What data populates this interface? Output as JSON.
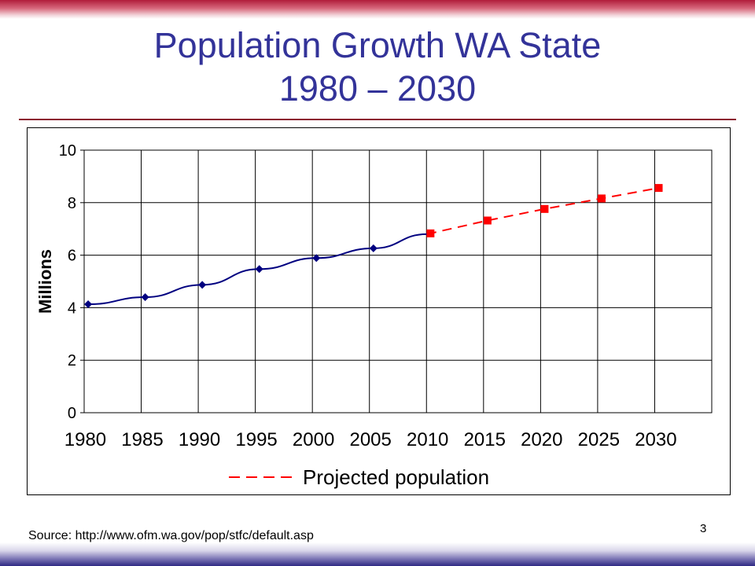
{
  "slide": {
    "title_line1": "Population Growth WA State",
    "title_line2": "1980 – 2030",
    "source": "Source: http://www.ofm.wa.gov/pop/stfc/default.asp",
    "page_number": "3"
  },
  "colors": {
    "title": "#333399",
    "actual_series": "#000080",
    "projected_series": "#ff0000"
  },
  "chart_data": {
    "type": "line",
    "ylabel": "Millions",
    "xlabel": "",
    "ylim": [
      0,
      10
    ],
    "yticks": [
      "0",
      "2",
      "4",
      "6",
      "8",
      "10"
    ],
    "x_tick_labels": [
      "1980",
      "1985",
      "1990",
      "1995",
      "2000",
      "2005",
      "2010",
      "2015",
      "2020",
      "2025",
      "2030"
    ],
    "xlim": [
      1980,
      2030
    ],
    "grid": true,
    "legend": {
      "placement": "bottom",
      "entries": [
        "Projected population"
      ]
    },
    "series": [
      {
        "marker": "diamond",
        "line_style": "solid",
        "x": [
          1980,
          1985,
          1990,
          1995,
          2000,
          2005
        ],
        "y": [
          4.13,
          4.4,
          4.87,
          5.47,
          5.89,
          6.26
        ],
        "line_end": {
          "x": 2009.7,
          "y": 6.8
        }
      },
      {
        "name": "Projected population",
        "marker": "square",
        "line_style": "dashed",
        "x": [
          2010,
          2015,
          2020,
          2025,
          2030
        ],
        "y": [
          6.83,
          7.32,
          7.76,
          8.16,
          8.56
        ]
      }
    ]
  }
}
